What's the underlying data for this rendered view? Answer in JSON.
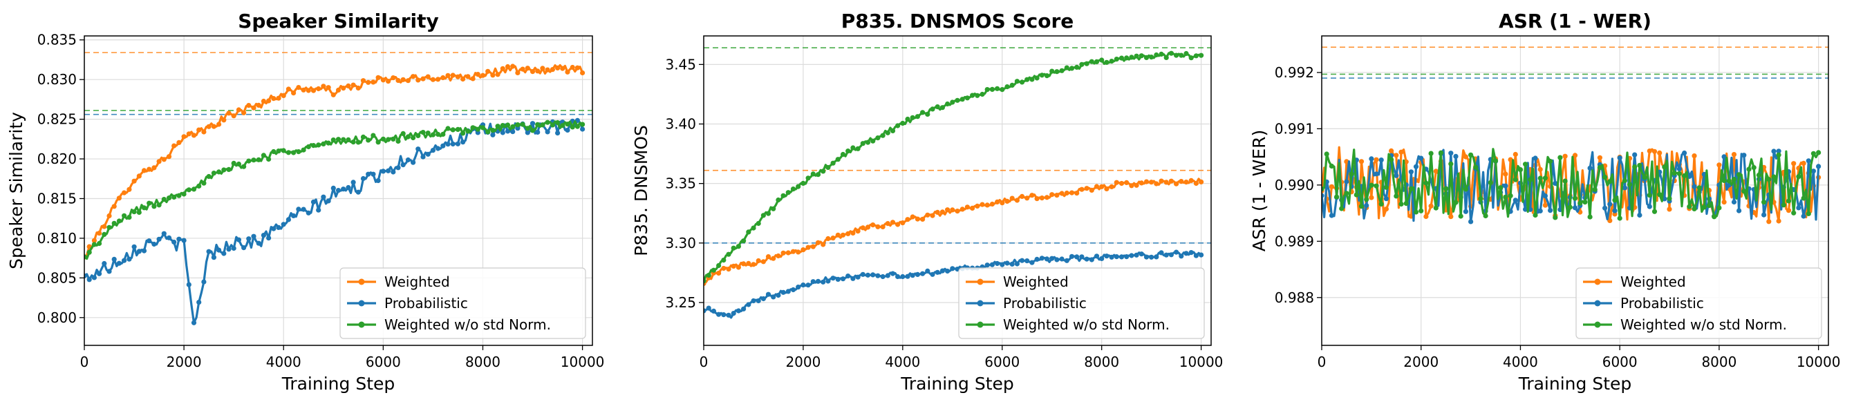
{
  "chart_data": [
    {
      "type": "line",
      "title": "Speaker Similarity",
      "xlabel": "Training Step",
      "ylabel": "Speaker Similarity",
      "xlim": [
        0,
        10200
      ],
      "ylim": [
        0.7965,
        0.8355
      ],
      "xticks": [
        "0",
        "2000",
        "4000",
        "6000",
        "8000",
        "10000"
      ],
      "yticks": [
        "0.800",
        "0.805",
        "0.810",
        "0.815",
        "0.820",
        "0.825",
        "0.830",
        "0.835"
      ],
      "grid": true,
      "legend": "lower-right",
      "hlines": [
        {
          "series": "Weighted",
          "y": 0.8334
        },
        {
          "series": "Probabilistic",
          "y": 0.8256
        },
        {
          "series": "Weighted w/o std Norm.",
          "y": 0.8261
        }
      ],
      "series": [
        {
          "name": "Weighted",
          "color": "#ff7f0e",
          "x": [
            0,
            500,
            1000,
            1500,
            2000,
            2500,
            3000,
            3500,
            4000,
            4500,
            5000,
            5500,
            6000,
            6500,
            7000,
            7500,
            8000,
            8500,
            9000,
            9500,
            10000
          ],
          "y": [
            0.8075,
            0.813,
            0.8175,
            0.8195,
            0.8225,
            0.824,
            0.8258,
            0.8268,
            0.8283,
            0.829,
            0.8285,
            0.8293,
            0.83,
            0.83,
            0.8303,
            0.8303,
            0.8307,
            0.8313,
            0.831,
            0.8314,
            0.8313
          ]
        },
        {
          "name": "Probabilistic",
          "color": "#1f77b4",
          "x": [
            0,
            500,
            1000,
            1500,
            2000,
            2200,
            2500,
            3000,
            3500,
            4000,
            4500,
            5000,
            5500,
            6000,
            6500,
            7000,
            7500,
            8000,
            8500,
            9000,
            9500,
            10000
          ],
          "y": [
            0.805,
            0.8065,
            0.8085,
            0.81,
            0.809,
            0.799,
            0.808,
            0.8095,
            0.8095,
            0.812,
            0.8135,
            0.8155,
            0.8165,
            0.8185,
            0.82,
            0.8215,
            0.8225,
            0.8235,
            0.8238,
            0.824,
            0.8238,
            0.8243
          ]
        },
        {
          "name": "Weighted w/o std Norm.",
          "color": "#2ca02c",
          "x": [
            0,
            500,
            1000,
            1500,
            2000,
            2500,
            3000,
            3500,
            4000,
            4500,
            5000,
            5500,
            6000,
            6500,
            7000,
            7500,
            8000,
            8500,
            9000,
            9500,
            10000
          ],
          "y": [
            0.8075,
            0.811,
            0.8135,
            0.8145,
            0.816,
            0.8175,
            0.819,
            0.82,
            0.821,
            0.8215,
            0.822,
            0.8225,
            0.8225,
            0.8228,
            0.8232,
            0.8235,
            0.8238,
            0.824,
            0.824,
            0.8243,
            0.8245
          ]
        }
      ]
    },
    {
      "type": "line",
      "title": "P835. DNSMOS Score",
      "xlabel": "Training Step",
      "ylabel": "P835. DNSMOS",
      "xlim": [
        0,
        10200
      ],
      "ylim": [
        3.214,
        3.474
      ],
      "xticks": [
        "0",
        "2000",
        "4000",
        "6000",
        "8000",
        "10000"
      ],
      "yticks": [
        "3.25",
        "3.30",
        "3.35",
        "3.40",
        "3.45"
      ],
      "grid": true,
      "legend": "lower-right",
      "hlines": [
        {
          "series": "Weighted",
          "y": 3.361
        },
        {
          "series": "Probabilistic",
          "y": 3.3
        },
        {
          "series": "Weighted w/o std Norm.",
          "y": 3.464
        }
      ],
      "series": [
        {
          "name": "Weighted",
          "color": "#ff7f0e",
          "x": [
            0,
            500,
            1000,
            1500,
            2000,
            2500,
            3000,
            3500,
            4000,
            4500,
            5000,
            5500,
            6000,
            6500,
            7000,
            7500,
            8000,
            8500,
            9000,
            9500,
            10000
          ],
          "y": [
            3.268,
            3.28,
            3.283,
            3.29,
            3.295,
            3.302,
            3.31,
            3.315,
            3.318,
            3.323,
            3.327,
            3.332,
            3.335,
            3.338,
            3.34,
            3.343,
            3.347,
            3.35,
            3.35,
            3.351,
            3.352
          ]
        },
        {
          "name": "Probabilistic",
          "color": "#1f77b4",
          "x": [
            0,
            500,
            1000,
            1500,
            2000,
            2500,
            3000,
            3500,
            4000,
            4500,
            5000,
            5500,
            6000,
            6500,
            7000,
            7500,
            8000,
            8500,
            9000,
            9500,
            10000
          ],
          "y": [
            3.245,
            3.238,
            3.25,
            3.258,
            3.265,
            3.27,
            3.272,
            3.274,
            3.272,
            3.275,
            3.278,
            3.28,
            3.283,
            3.285,
            3.286,
            3.287,
            3.288,
            3.29,
            3.29,
            3.291,
            3.29
          ]
        },
        {
          "name": "Weighted w/o std Norm.",
          "color": "#2ca02c",
          "x": [
            0,
            500,
            1000,
            1500,
            2000,
            2500,
            3000,
            3500,
            4000,
            4500,
            5000,
            5500,
            6000,
            6500,
            7000,
            7500,
            8000,
            8500,
            9000,
            9500,
            10000
          ],
          "y": [
            3.27,
            3.29,
            3.313,
            3.335,
            3.35,
            3.365,
            3.378,
            3.39,
            3.4,
            3.41,
            3.418,
            3.425,
            3.43,
            3.437,
            3.443,
            3.448,
            3.452,
            3.455,
            3.457,
            3.458,
            3.457
          ]
        }
      ]
    },
    {
      "type": "line",
      "title": "ASR (1 - WER)",
      "xlabel": "Training Step",
      "ylabel": "ASR (1 - WER)",
      "xlim": [
        0,
        10200
      ],
      "ylim": [
        0.98715,
        0.99265
      ],
      "xticks": [
        "0",
        "2000",
        "4000",
        "6000",
        "8000",
        "10000"
      ],
      "yticks": [
        "0.988",
        "0.989",
        "0.990",
        "0.991",
        "0.992"
      ],
      "grid": true,
      "legend": "lower-right",
      "hlines": [
        {
          "series": "Weighted",
          "y": 0.99245
        },
        {
          "series": "Probabilistic",
          "y": 0.9919
        },
        {
          "series": "Weighted w/o std Norm.",
          "y": 0.99197
        }
      ],
      "series": [
        {
          "name": "Weighted",
          "color": "#ff7f0e",
          "x": [
            0,
            500,
            1000,
            1500,
            2000,
            2500,
            3000,
            3500,
            4000,
            4500,
            5000,
            5500,
            6000,
            6500,
            7000,
            7500,
            8000,
            8500,
            9000,
            9500,
            10000
          ],
          "y": [
            0.99,
            0.9901,
            0.98995,
            0.99005,
            0.99,
            0.9899,
            0.9901,
            0.99,
            0.98995,
            0.99005,
            0.99,
            0.99,
            0.98995,
            0.99005,
            0.99,
            0.99,
            0.98995,
            0.99005,
            0.9899,
            0.99,
            0.98995
          ]
        },
        {
          "name": "Probabilistic",
          "color": "#1f77b4",
          "x": [
            0,
            500,
            1000,
            1500,
            2000,
            2500,
            3000,
            3500,
            4000,
            4500,
            5000,
            5500,
            6000,
            6500,
            7000,
            7500,
            8000,
            8500,
            9000,
            9500,
            10000
          ],
          "y": [
            0.9899,
            0.99,
            0.98995,
            0.99,
            0.98995,
            0.99005,
            0.9899,
            0.99,
            0.99,
            0.98995,
            0.99005,
            0.99,
            0.9899,
            0.99,
            0.99005,
            0.98995,
            0.99,
            0.98995,
            0.99005,
            0.99,
            0.98995
          ]
        },
        {
          "name": "Weighted w/o std Norm.",
          "color": "#2ca02c",
          "x": [
            0,
            500,
            1000,
            1500,
            2000,
            2500,
            3000,
            3500,
            4000,
            4500,
            5000,
            5500,
            6000,
            6500,
            7000,
            7500,
            8000,
            8500,
            9000,
            9500,
            10000
          ],
          "y": [
            0.99,
            0.99005,
            0.99,
            0.98995,
            0.9901,
            0.99,
            0.98995,
            0.99005,
            0.99,
            0.99,
            0.98995,
            0.99005,
            0.99,
            0.98995,
            0.99,
            0.99005,
            0.99,
            0.98995,
            0.99,
            0.99005,
            0.99
          ]
        }
      ]
    }
  ]
}
